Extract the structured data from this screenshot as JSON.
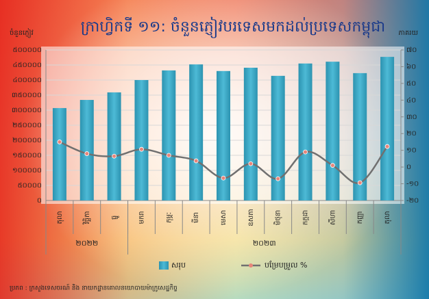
{
  "chart_data": {
    "type": "bar",
    "title": "ក្រាហ្វិកទី ១១: ចំនួនភ្ញៀវបរទេសមកដល់ប្រទេសកម្ពុជា",
    "y_label": "ចំនួនភ្ញៀវ",
    "y2_label": "ភាគរយ",
    "source": "ប្រភព : ក្រសួងទេសចរណ៍ និង នាយកដ្ឋានគោលនយោបាយម៉ាក្រូសេដ្ឋកិច្ច",
    "categories": [
      "តុលា",
      "វិច្ឆិកា",
      "ធ្នូ",
      "មករា",
      "កុម្ភៈ",
      "មីនា",
      "មេសា",
      "ឧសភា",
      "មិថុនា",
      "កក្កដា",
      "សីហា",
      "កញ្ញា",
      "តុលា"
    ],
    "x_groups": [
      {
        "label": "២០២២",
        "span": 3
      },
      {
        "label": "២០២៣",
        "span": 10
      }
    ],
    "series": [
      {
        "name": "សរុប",
        "type": "bar",
        "color": "#3aaac6",
        "values": [
          307000,
          334000,
          359000,
          400000,
          432000,
          452000,
          430000,
          441000,
          414000,
          455000,
          461000,
          423000,
          477000
        ]
      },
      {
        "name": "បម្រែបម្រួល %",
        "type": "line",
        "axis": "y2",
        "color": "#707070",
        "marker_color": "#e8857a",
        "values": [
          15,
          8,
          6.5,
          10.6,
          7,
          3.7,
          -6.6,
          2,
          -7,
          9,
          1,
          -9.4,
          12.3
        ]
      }
    ],
    "ylim": [
      0,
      500000
    ],
    "yticks": [
      {
        "value": 0,
        "label": "០"
      },
      {
        "value": 50000,
        "label": "៥០០០០"
      },
      {
        "value": 100000,
        "label": "១០០០០០"
      },
      {
        "value": 150000,
        "label": "១៥០០០០"
      },
      {
        "value": 200000,
        "label": "២០០០០០"
      },
      {
        "value": 250000,
        "label": "២៥០០០០"
      },
      {
        "value": 300000,
        "label": "៣០០០០០"
      },
      {
        "value": 350000,
        "label": "៣៥០០០០"
      },
      {
        "value": 400000,
        "label": "៤០០០០០"
      },
      {
        "value": 450000,
        "label": "៤៥០០០០"
      },
      {
        "value": 500000,
        "label": "៥០០០០០"
      }
    ],
    "y2lim": [
      -20,
      70
    ],
    "y2ticks": [
      {
        "value": -20,
        "label": "-២០"
      },
      {
        "value": -10,
        "label": "-១០"
      },
      {
        "value": 0,
        "label": "០"
      },
      {
        "value": 10,
        "label": "១០"
      },
      {
        "value": 20,
        "label": "២០"
      },
      {
        "value": 30,
        "label": "៣០"
      },
      {
        "value": 40,
        "label": "៤០"
      },
      {
        "value": 50,
        "label": "៥០"
      },
      {
        "value": 60,
        "label": "៦០"
      },
      {
        "value": 70,
        "label": "៧០"
      }
    ],
    "grid": true,
    "legend": "bottom"
  }
}
